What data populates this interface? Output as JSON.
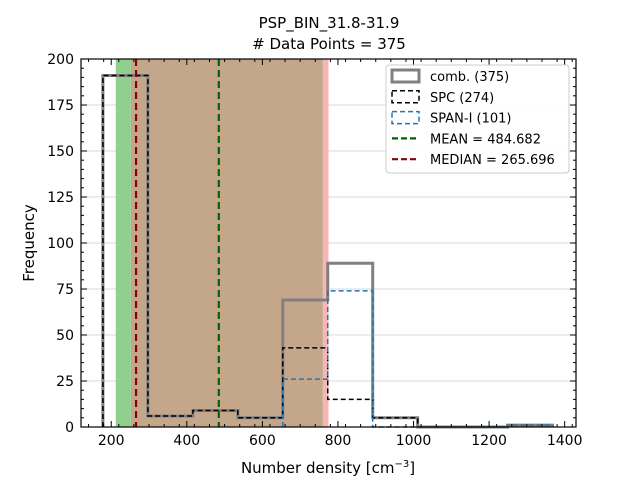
{
  "chart_data": {
    "type": "histogram",
    "title": "PSP_BIN_31.8-31.9",
    "subtitle": "# Data Points = 375",
    "xlabel": "Number density [cm",
    "xlabel_sup": "−3",
    "xlabel_end": "]",
    "ylabel": "Frequency",
    "xlim": [
      120,
      1430
    ],
    "ylim": [
      0,
      200
    ],
    "xticks": [
      200,
      400,
      600,
      800,
      1000,
      1200,
      1400
    ],
    "yticks": [
      0,
      25,
      50,
      75,
      100,
      125,
      150,
      175,
      200
    ],
    "grid": "horizontal",
    "legend_position": "upper right",
    "shaded_regions": [
      {
        "x0": 212,
        "x1": 252,
        "color": "#8fd08f"
      },
      {
        "x0": 760,
        "x1": 775,
        "color": "#f6b6b6"
      },
      {
        "x0": 252,
        "x1": 760,
        "color": "#c4a68b"
      }
    ],
    "series": [
      {
        "name": "comb. (375)",
        "style": "solid",
        "color": "#808080",
        "width": 3,
        "edges": [
          178,
          297,
          416,
          535,
          654,
          773,
          892,
          1011,
          1130,
          1249,
          1368
        ],
        "counts": [
          191,
          6,
          9,
          5,
          69,
          89,
          5,
          0,
          0,
          1
        ]
      },
      {
        "name": "SPC (274)",
        "style": "dashed",
        "color": "#000000",
        "width": 1.5,
        "edges": [
          178,
          297,
          416,
          535,
          654,
          773,
          892,
          1011
        ],
        "counts": [
          191,
          6,
          9,
          5,
          43,
          15,
          5
        ]
      },
      {
        "name": "SPAN-I (101)",
        "style": "dashed",
        "color": "#1f77b4",
        "width": 1.5,
        "edges": [
          654,
          773,
          892,
          1011,
          1130,
          1249,
          1368
        ],
        "counts": [
          26,
          74,
          0,
          0,
          0,
          1
        ]
      }
    ],
    "vlines": [
      {
        "name": "MEAN = 484.682",
        "x": 484.682,
        "color": "#006400"
      },
      {
        "name": "MEDIAN = 265.696",
        "x": 265.696,
        "color": "#8b0000"
      }
    ]
  }
}
